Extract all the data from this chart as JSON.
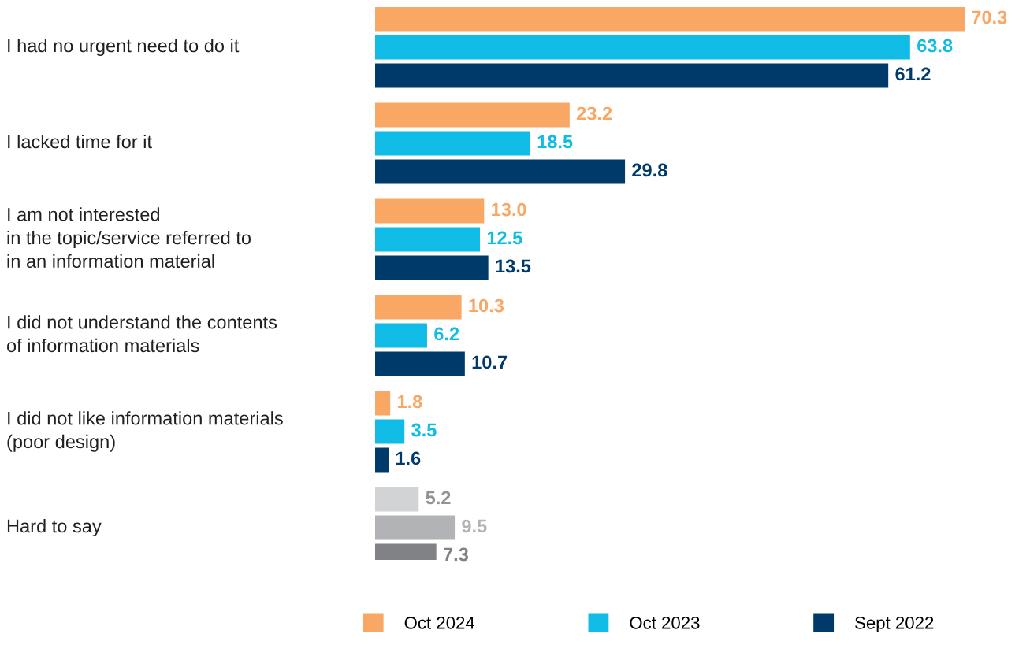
{
  "chart_data": {
    "type": "bar",
    "orientation": "horizontal",
    "data_labels": true,
    "legend": "bottom",
    "tick_labels": "y",
    "categories": [
      "I had no urgent need to do it",
      "I lacked time for it",
      "I am not interested\nin the topic/service referred to\nin an information material",
      "I did not understand the contents\nof information materials",
      "I did not like information materials\n(poor design)",
      "Hard to say"
    ],
    "series": [
      {
        "name": "Oct 2024",
        "color": "#f9a764",
        "colors": [
          "#f9a764",
          "#f9a764",
          "#f9a764",
          "#f9a764",
          "#f9a764",
          "#d1d3d4"
        ],
        "values": [
          70.3,
          23.2,
          13.0,
          10.3,
          1.8,
          5.2
        ],
        "value_labels": [
          "70.3",
          "23.2",
          "13.0",
          "10.3",
          "1.8",
          "5.2"
        ]
      },
      {
        "name": "Oct 2023",
        "color": "#10bce6",
        "colors": [
          "#10bce6",
          "#10bce6",
          "#10bce6",
          "#10bce6",
          "#10bce6",
          "#b1b3b6"
        ],
        "values": [
          63.8,
          18.5,
          12.5,
          6.2,
          3.5,
          9.5
        ],
        "value_labels": [
          "63.8",
          "18.5",
          "12.5",
          "6.2",
          "3.5",
          "9.5"
        ]
      },
      {
        "name": "Sept 2022",
        "color": "#003a6b",
        "colors": [
          "#003a6b",
          "#003a6b",
          "#003a6b",
          "#003a6b",
          "#003a6b",
          "#808285"
        ],
        "values": [
          61.2,
          29.8,
          13.5,
          10.7,
          1.6,
          7.3
        ],
        "value_labels": [
          "61.2",
          "29.8",
          "13.5",
          "10.7",
          "1.6",
          "7.3"
        ]
      }
    ]
  }
}
